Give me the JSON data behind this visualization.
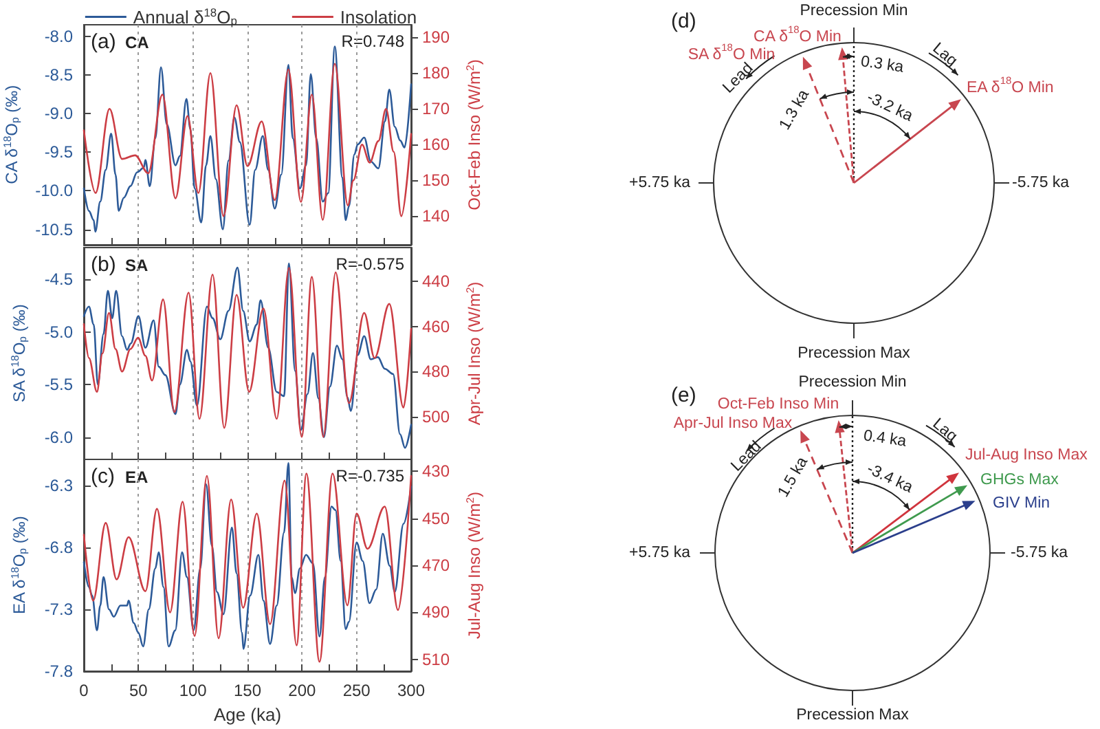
{
  "chart_data": [
    {
      "type": "line",
      "title": "(a)",
      "annotations": [
        "CA",
        "R=0.748"
      ],
      "ylabel": "CA δ$^{18}$O$_{p}$ (‰)",
      "y2label": "Oct-Feb Inso (W/m$^{2}$)",
      "xlim": [
        0,
        300
      ],
      "xticks": [
        0,
        {
          "value": 25,
          "label": null
        },
        50,
        {
          "value": 75,
          "label": null
        },
        100,
        {
          "value": 125,
          "label": null
        },
        150,
        {
          "value": 175,
          "label": null
        },
        200,
        {
          "value": 225,
          "label": null
        },
        250,
        {
          "value": 275,
          "label": null
        },
        300
      ],
      "ylim": [
        -10.7,
        -7.85
      ],
      "yticks": [
        {
          "value": -10.5,
          "label": "-10.5"
        },
        {
          "value": -10,
          "label": "-10.0"
        },
        {
          "value": -9.5,
          "label": "-9.5"
        },
        {
          "value": -9,
          "label": "-9.0"
        },
        {
          "value": -8.5,
          "label": "-8.5"
        },
        {
          "value": -8,
          "label": "-8.0"
        }
      ],
      "y2lim": [
        132,
        193.5
      ],
      "y2ticks": [
        140,
        150,
        160,
        170,
        180,
        190
      ],
      "tick_labels": "y",
      "grid": "x",
      "legend": "top",
      "marker": "none",
      "line_style": "solid",
      "series": [
        {
          "name": "Annual δ$^{18}$O$_{p}$",
          "color": "#2c5a98",
          "x": [
            0,
            4.6,
            9,
            10.5,
            15,
            20,
            25,
            29,
            32,
            36.6,
            42.7,
            48.8,
            55,
            56.4,
            60.4,
            65.5,
            70.7,
            76,
            84,
            88,
            94,
            97.6,
            101.5,
            107.6,
            112,
            116,
            121,
            127.4,
            132.6,
            138,
            143,
            152,
            157,
            164,
            169,
            175,
            181,
            187.5,
            191.5,
            198,
            203.7,
            208,
            213,
            219,
            224,
            230,
            237,
            240,
            243,
            248,
            251,
            257,
            263,
            270,
            276,
            280,
            285,
            290,
            294,
            300
          ],
          "values": [
            -9.97,
            -10.26,
            -10.38,
            -10.53,
            -10.14,
            -9.73,
            -9.26,
            -9.79,
            -10.26,
            -10.09,
            -9.94,
            -9.76,
            -9.7,
            -9.6,
            -9.94,
            -9.32,
            -8.4,
            -9.14,
            -9.67,
            -9.55,
            -8.81,
            -9.2,
            -9.97,
            -10.41,
            -9.67,
            -9.29,
            -9.85,
            -10.5,
            -9.61,
            -9.05,
            -9.37,
            -10.44,
            -9.73,
            -9.29,
            -9.73,
            -10.23,
            -9.79,
            -8.37,
            -9.32,
            -9.97,
            -9.67,
            -8.49,
            -9.32,
            -10.14,
            -10.03,
            -8.13,
            -9.83,
            -10.38,
            -10.2,
            -9.53,
            -9.4,
            -9.31,
            -9.62,
            -9.71,
            -9.1,
            -8.69,
            -9.17,
            -9.35,
            -9.44,
            -8.62
          ]
        },
        {
          "name": "Insolation",
          "color": "#cc3d44",
          "axis": "y2",
          "x": [
            0,
            10.7,
            23.5,
            35,
            47,
            59,
            72,
            84,
            95,
            105,
            116,
            128,
            140,
            150,
            163,
            175,
            187.5,
            199,
            209,
            219,
            230,
            242,
            247,
            255,
            262,
            270,
            277,
            284,
            291,
            300
          ],
          "values": [
            164,
            146.5,
            170,
            156,
            157,
            152,
            174,
            145,
            168,
            146.5,
            180,
            140,
            171,
            154,
            166.5,
            144.5,
            181,
            144,
            174,
            139,
            182.6,
            143,
            150,
            160,
            155,
            161,
            170,
            158,
            140,
            163
          ]
        }
      ]
    },
    {
      "type": "line",
      "title": "(b)",
      "annotations": [
        "SA",
        "R=-0.575"
      ],
      "ylabel": "SA δ$^{18}$O$_{p}$ (‰)",
      "y2label": "Apr-Jul Inso (W/m$^{2}$)",
      "xlim": [
        0,
        300
      ],
      "xticks": [
        0,
        {
          "value": 25,
          "label": null
        },
        50,
        {
          "value": 75,
          "label": null
        },
        100,
        {
          "value": 125,
          "label": null
        },
        150,
        {
          "value": 175,
          "label": null
        },
        200,
        {
          "value": 225,
          "label": null
        },
        250,
        {
          "value": 275,
          "label": null
        },
        300
      ],
      "ylim": [
        -6.21,
        -4.2
      ],
      "yticks": [
        {
          "value": -6,
          "label": "-6.0"
        },
        {
          "value": -5.5,
          "label": "-5.5"
        },
        {
          "value": -5,
          "label": "-5.0"
        },
        {
          "value": -4.5,
          "label": "-4.5"
        }
      ],
      "y2lim": [
        519,
        425
      ],
      "y2ticks": [
        440,
        460,
        480,
        500
      ],
      "tick_labels": "y",
      "grid": "x",
      "marker": "none",
      "line_style": "solid",
      "series": [
        {
          "color": "#2c5a98",
          "x": [
            0,
            4.6,
            9,
            12.8,
            18,
            22,
            26,
            29.6,
            35,
            39.6,
            43,
            50,
            56.4,
            64,
            68.6,
            74.7,
            84,
            88,
            94.5,
            97.6,
            103.7,
            112.8,
            118,
            125,
            132.6,
            140.8,
            146,
            152,
            158.5,
            162,
            169,
            176.8,
            183.5,
            188,
            193.6,
            199,
            205,
            210,
            215,
            220,
            225.6,
            232,
            237,
            241.6,
            244.7,
            251,
            257,
            263,
            269.6,
            275.8,
            283.5,
            289.8,
            294.4,
            300
          ],
          "values": [
            -4.85,
            -4.76,
            -4.93,
            -5.5,
            -5.02,
            -4.61,
            -4.87,
            -4.61,
            -5.04,
            -5.17,
            -5.11,
            -4.85,
            -5.15,
            -4.89,
            -5.33,
            -5.41,
            -5.78,
            -5.5,
            -5.17,
            -5.28,
            -5.7,
            -4.76,
            -4.87,
            -5.07,
            -4.8,
            -4.39,
            -4.8,
            -5.09,
            -4.93,
            -4.7,
            -5.15,
            -5.57,
            -5.61,
            -4.35,
            -5.37,
            -5.93,
            -5.59,
            -5.2,
            -5.63,
            -6.0,
            -5.52,
            -5.13,
            -5.26,
            -5.62,
            -5.75,
            -5.22,
            -5.04,
            -5.26,
            -5.24,
            -5.35,
            -5.4,
            -5.97,
            -6.1,
            -5.88
          ]
        },
        {
          "color": "#cc3d44",
          "axis": "y2",
          "x": [
            0,
            4.6,
            12,
            17,
            23,
            29,
            35,
            42.7,
            49.7,
            56.4,
            62.5,
            72.6,
            83,
            96,
            106,
            118,
            128.7,
            140,
            151.5,
            164.6,
            176.8,
            188,
            199.7,
            209,
            219.5,
            230.8,
            243,
            257,
            266.5,
            280,
            293,
            300
          ],
          "values": [
            459,
            474,
            489,
            472,
            454,
            470,
            480,
            470,
            465,
            473,
            484,
            448,
            498,
            445,
            501,
            437,
            505,
            446,
            489,
            452,
            501,
            434,
            509,
            438,
            509,
            436,
            494,
            454,
            474,
            450,
            496,
            461
          ]
        }
      ]
    },
    {
      "type": "line",
      "title": "(c)",
      "annotations": [
        "EA",
        "R=-0.735"
      ],
      "xlabel": "Age (ka)",
      "ylabel": "EA δ$^{18}$O$_{p}$ (‰)",
      "y2label": "Jul-Aug Inso (W/m$^{2}$)",
      "xlim": [
        0,
        300
      ],
      "xticks": [
        0,
        {
          "value": 25,
          "label": null
        },
        50,
        {
          "value": 75,
          "label": null
        },
        100,
        {
          "value": 125,
          "label": null
        },
        150,
        {
          "value": 175,
          "label": null
        },
        200,
        {
          "value": 225,
          "label": null
        },
        250,
        {
          "value": 275,
          "label": null
        },
        300
      ],
      "ylim": [
        -7.8,
        -6.09
      ],
      "yticks": [
        -7.8,
        -7.3,
        -6.8,
        -6.3
      ],
      "y2lim": [
        515,
        425
      ],
      "y2ticks": [
        430,
        450,
        470,
        490,
        510
      ],
      "grid": "x",
      "marker": "none",
      "line_style": "solid",
      "series": [
        {
          "color": "#2c5a98",
          "x": [
            0,
            4.6,
            7.6,
            12,
            15,
            18,
            23,
            27.4,
            33.5,
            39.6,
            41,
            45.7,
            50,
            54.3,
            59.5,
            65.5,
            68.6,
            73,
            77.7,
            83.8,
            90,
            94.5,
            100.6,
            106.7,
            112,
            117.4,
            122,
            128,
            135.7,
            140,
            145,
            146.3,
            152.4,
            160,
            164.6,
            170.7,
            176.8,
            183.5,
            187.5,
            190.5,
            193.6,
            198,
            203.7,
            210,
            216,
            221,
            227,
            230.7,
            235.4,
            240,
            243,
            250,
            255.6,
            261.8,
            268,
            274,
            280.4,
            285,
            293,
            300
          ],
          "values": [
            -6.92,
            -7.12,
            -7.19,
            -7.47,
            -7.27,
            -7.04,
            -7.3,
            -7.36,
            -7.27,
            -7.27,
            -7.23,
            -7.41,
            -7.49,
            -7.6,
            -7.3,
            -6.97,
            -6.84,
            -7.12,
            -7.6,
            -7.47,
            -6.84,
            -7.04,
            -7.47,
            -6.97,
            -6.29,
            -6.79,
            -7.16,
            -7.34,
            -6.64,
            -7.01,
            -7.49,
            -7.62,
            -7.19,
            -6.86,
            -7.23,
            -7.58,
            -7.27,
            -6.68,
            -6.12,
            -7.04,
            -7.17,
            -6.97,
            -6.86,
            -6.93,
            -7.52,
            -7.04,
            -6.47,
            -6.5,
            -6.91,
            -7.46,
            -7.4,
            -6.76,
            -6.91,
            -7.25,
            -7.14,
            -6.69,
            -6.95,
            -7.16,
            -6.61,
            -6.31
          ]
        },
        {
          "color": "#cc3d44",
          "axis": "y2",
          "x": [
            0,
            8.5,
            20,
            30,
            41,
            56.4,
            67,
            79,
            90.5,
            101.5,
            112.8,
            123.5,
            135,
            146,
            158.5,
            170.7,
            184,
            195,
            204,
            216,
            228,
            241.6,
            250,
            260,
            275.8,
            288,
            300
          ],
          "values": [
            457,
            485,
            452,
            476,
            458,
            481,
            446,
            490,
            443,
            500,
            432,
            501,
            442,
            488,
            448,
            495,
            434,
            504,
            431,
            511,
            431,
            487,
            448,
            463,
            445,
            489,
            432
          ]
        }
      ]
    },
    {
      "type": "other",
      "title": "(d)",
      "annotations": [
        "Precession Min",
        "Precession Max",
        "+5.75 ka",
        "-5.75 ka",
        "CA δ$^{18}$O Min",
        "SA δ$^{18}$O Min",
        "EA δ$^{18}$O Min",
        "0.3 ka",
        "1.3 ka",
        "-3.2 ka",
        "Lead",
        "Lag"
      ]
    },
    {
      "type": "other",
      "title": "(e)",
      "annotations": [
        "Precession Min",
        "Precession Max",
        "+5.75 ka",
        "-5.75 ka",
        "Oct-Feb Inso Min",
        "Apr-Jul Inso Max",
        "Jul-Aug Inso Max",
        "GHGs Max",
        "GIV Min",
        "0.4 ka",
        "1.5 ka",
        "-3.4 ka",
        "Lead",
        "Lag"
      ]
    }
  ]
}
